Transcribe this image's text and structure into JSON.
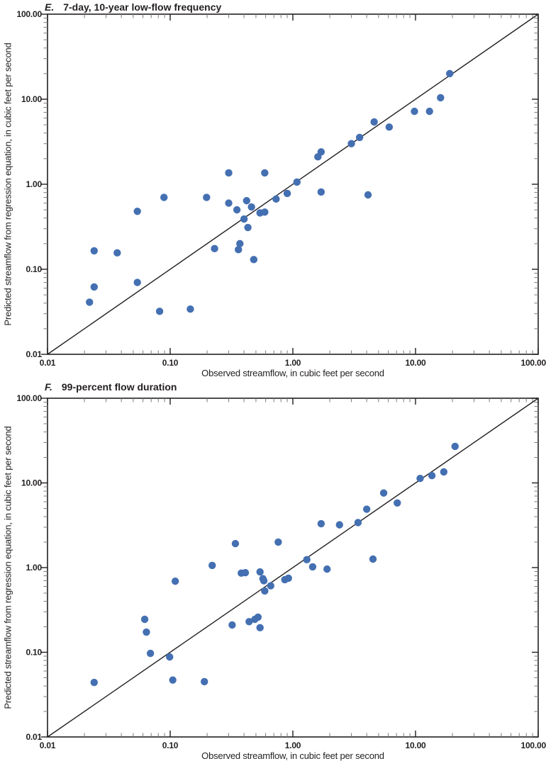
{
  "figure": {
    "panels": [
      {
        "letter": "E.",
        "title": "7-day, 10-year low-flow frequency",
        "xlabel": "Observed streamflow, in cubic feet per second",
        "ylabel": "Predicted streamflow from regression equation, in cubic feet per second"
      },
      {
        "letter": "F.",
        "title": "99-percent flow duration",
        "xlabel": "Observed streamflow, in cubic feet per second",
        "ylabel": "Predicted streamflow from regression equation, in cubic feet per second"
      }
    ]
  },
  "chart_data": [
    {
      "type": "scatter",
      "title": "E. 7-day, 10-year low-flow frequency",
      "xlabel": "Observed streamflow, in cubic feet per second",
      "ylabel": "Predicted streamflow from regression equation, in cubic feet per second",
      "xscale": "log",
      "yscale": "log",
      "xlim": [
        0.01,
        100
      ],
      "ylim": [
        0.01,
        100
      ],
      "tick_labels": [
        "0.01",
        "0.10",
        "1.00",
        "10.00",
        "100.00"
      ],
      "grid": false,
      "legend": "none",
      "marker_color": "#4470b2",
      "axis_color": "#231f20",
      "minor_tick_color": "#7a7a7a",
      "reference_line": {
        "name": "1:1 line",
        "from": [
          0.01,
          0.01
        ],
        "to": [
          100,
          100
        ]
      },
      "points": [
        [
          0.022,
          0.041
        ],
        [
          0.024,
          0.062
        ],
        [
          0.024,
          0.165
        ],
        [
          0.037,
          0.156
        ],
        [
          0.054,
          0.07
        ],
        [
          0.054,
          0.48
        ],
        [
          0.082,
          0.032
        ],
        [
          0.089,
          0.7
        ],
        [
          0.146,
          0.034
        ],
        [
          0.198,
          0.7
        ],
        [
          0.23,
          0.175
        ],
        [
          0.3,
          1.36
        ],
        [
          0.3,
          0.6
        ],
        [
          0.35,
          0.5
        ],
        [
          0.36,
          0.17
        ],
        [
          0.37,
          0.2
        ],
        [
          0.4,
          0.39
        ],
        [
          0.42,
          0.64
        ],
        [
          0.43,
          0.31
        ],
        [
          0.46,
          0.54
        ],
        [
          0.48,
          0.13
        ],
        [
          0.54,
          0.46
        ],
        [
          0.59,
          1.36
        ],
        [
          0.59,
          0.47
        ],
        [
          0.73,
          0.67
        ],
        [
          0.9,
          0.78
        ],
        [
          1.08,
          1.06
        ],
        [
          1.6,
          2.1
        ],
        [
          1.7,
          2.4
        ],
        [
          1.7,
          0.81
        ],
        [
          3.0,
          3.0
        ],
        [
          3.5,
          3.55
        ],
        [
          4.1,
          0.75
        ],
        [
          4.6,
          5.4
        ],
        [
          6.1,
          4.7
        ],
        [
          9.8,
          7.2
        ],
        [
          13,
          7.2
        ],
        [
          16,
          10.4
        ],
        [
          19,
          20
        ]
      ]
    },
    {
      "type": "scatter",
      "title": "F. 99-percent flow duration",
      "xlabel": "Observed streamflow, in cubic feet per second",
      "ylabel": "Predicted streamflow from regression equation, in cubic feet per second",
      "xscale": "log",
      "yscale": "log",
      "xlim": [
        0.01,
        100
      ],
      "ylim": [
        0.01,
        100
      ],
      "tick_labels": [
        "0.01",
        "0.10",
        "1.00",
        "10.00",
        "100.00"
      ],
      "grid": false,
      "legend": "none",
      "marker_color": "#4470b2",
      "axis_color": "#231f20",
      "minor_tick_color": "#7a7a7a",
      "reference_line": {
        "name": "1:1 line",
        "from": [
          0.01,
          0.01
        ],
        "to": [
          100,
          100
        ]
      },
      "points": [
        [
          0.024,
          0.044
        ],
        [
          0.062,
          0.245
        ],
        [
          0.064,
          0.173
        ],
        [
          0.069,
          0.097
        ],
        [
          0.099,
          0.088
        ],
        [
          0.105,
          0.047
        ],
        [
          0.11,
          0.69
        ],
        [
          0.19,
          0.045
        ],
        [
          0.22,
          1.06
        ],
        [
          0.32,
          0.21
        ],
        [
          0.34,
          1.92
        ],
        [
          0.38,
          0.86
        ],
        [
          0.41,
          0.87
        ],
        [
          0.44,
          0.23
        ],
        [
          0.49,
          0.245
        ],
        [
          0.52,
          0.26
        ],
        [
          0.54,
          0.89
        ],
        [
          0.54,
          0.195
        ],
        [
          0.57,
          0.74
        ],
        [
          0.58,
          0.7
        ],
        [
          0.59,
          0.53
        ],
        [
          0.66,
          0.61
        ],
        [
          0.76,
          2.0
        ],
        [
          0.86,
          0.72
        ],
        [
          0.92,
          0.75
        ],
        [
          1.3,
          1.24
        ],
        [
          1.45,
          1.02
        ],
        [
          1.9,
          0.96
        ],
        [
          1.7,
          3.3
        ],
        [
          2.4,
          3.2
        ],
        [
          3.4,
          3.4
        ],
        [
          4.0,
          4.9
        ],
        [
          4.5,
          1.26
        ],
        [
          5.5,
          7.6
        ],
        [
          7.1,
          5.8
        ],
        [
          10.9,
          11.3
        ],
        [
          13.6,
          12.2
        ],
        [
          17,
          13.5
        ],
        [
          21,
          27
        ]
      ]
    }
  ]
}
